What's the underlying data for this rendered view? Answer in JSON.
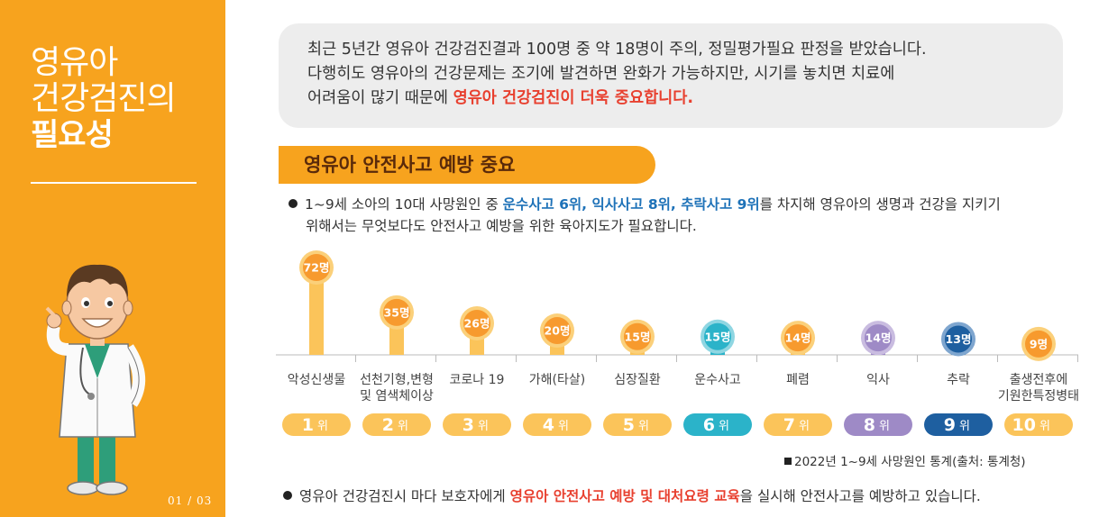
{
  "sidebar": {
    "title_line1": "영유아",
    "title_line2": "건강검진의",
    "title_line3": "필요성",
    "page_indicator": "01 / 03"
  },
  "intro": {
    "line1": "최근 5년간 영유아 건강검진결과 100명 중 약 18명이 주의, 정밀평가필요 판정을 받았습니다.",
    "line2": "다행히도 영유아의 건강문제는 조기에 발견하면 완화가 가능하지만, 시기를 놓치면 치료에",
    "line3_plain": "어려움이 많기 때문에 ",
    "line3_emph": "영유아 건강검진이 더욱 중요합니다."
  },
  "section": {
    "header": "영유아 안전사고 예방 중요",
    "bullet1_a": "1~9세 소아의 10대 사망원인 중 ",
    "bullet1_emph": "운수사고 6위, 익사사고 8위, 추락사고 9위",
    "bullet1_b": "를 차지해 영유아의 생명과 건강을 지키기",
    "bullet1_line2": "위해서는 무엇보다도 안전사고 예방을 위한 육아지도가 필요합니다.",
    "source": "2022년 1~9세 사망원인 통계(출처: 통계청)",
    "bullet2_a": "영유아 건강검진시 마다 보호자에게 ",
    "bullet2_emph": "영유아 안전사고 예방 및 대처요령 교육",
    "bullet2_b": "을 실시해 안전사고를 예방하고 있습니다."
  },
  "colors": {
    "orange": "#F7A31E",
    "light_orange": "#FBC45A",
    "teal": "#2BB3C9",
    "purple": "#9E8AC6",
    "navy": "#1E5FA0",
    "red_emph": "#E8402F",
    "blue_emph": "#1E72B8"
  },
  "chart_data": {
    "type": "bar",
    "categories": [
      [
        "악성신생물"
      ],
      [
        "선천기형,변형",
        "및 염색체이상"
      ],
      [
        "코로나 19"
      ],
      [
        "가해(타살)"
      ],
      [
        "심장질환"
      ],
      [
        "운수사고"
      ],
      [
        "폐렴"
      ],
      [
        "익사"
      ],
      [
        "추락"
      ],
      [
        "출생전후에",
        "기원한특정병태"
      ]
    ],
    "values": [
      72,
      35,
      26,
      20,
      15,
      15,
      14,
      14,
      13,
      9
    ],
    "value_labels": [
      "72명",
      "35명",
      "26명",
      "20명",
      "15명",
      "15명",
      "14명",
      "14명",
      "13명",
      "9명"
    ],
    "ranks": [
      "1",
      "2",
      "3",
      "4",
      "5",
      "6",
      "7",
      "8",
      "9",
      "10"
    ],
    "rank_suffix": "위",
    "highlight": {
      "5": "teal",
      "7": "purple",
      "8": "navy"
    },
    "ylim": [
      0,
      72
    ],
    "grid": false
  }
}
